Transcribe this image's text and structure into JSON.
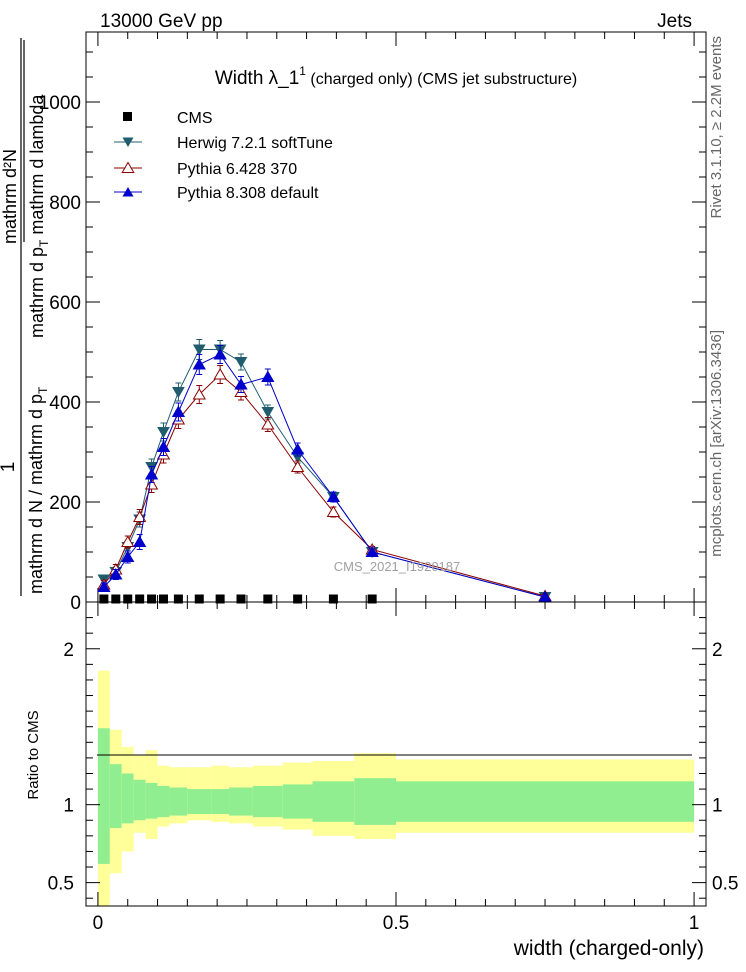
{
  "header": {
    "left": "13000 GeV pp",
    "right": "Jets"
  },
  "side_labels": {
    "rivet": "Rivet 3.1.10, ≥ 2.2M events",
    "mcplots": "mcplots.cern.ch [arXiv:1306.3436]"
  },
  "watermark": "CMS_2021_I1920187",
  "chart_data": [
    {
      "type": "line",
      "title_main": "Width λ_1",
      "title_sup": "1",
      "title_rest": " (charged only) (CMS jet substructure)",
      "ylabel_numerator": "mathrm d²N",
      "ylabel_numerator_rest": "mathrm d p",
      "ylabel_numerator_sub": "T",
      "ylabel_numerator_tail": " mathrm d lambda",
      "ylabel_one": "1",
      "ylabel_denominator": "mathrm d N / mathrm d p",
      "ylabel_denominator_sub": "T",
      "xlim": [
        -0.02,
        1.02
      ],
      "ylim": [
        0,
        1140
      ],
      "y_ticks": [
        0,
        200,
        400,
        600,
        800,
        1000
      ],
      "y_tick_labels": [
        "0",
        "200",
        "400",
        "600",
        "800",
        "1000"
      ],
      "legend_position": "top-left",
      "series": [
        {
          "name": "CMS",
          "color": "#000000",
          "marker": "square",
          "x": [
            0.01,
            0.03,
            0.05,
            0.07,
            0.09,
            0.11,
            0.135,
            0.17,
            0.205,
            0.24,
            0.285,
            0.335,
            0.395,
            0.46
          ],
          "y": [
            3,
            3,
            3,
            3,
            3,
            3,
            3,
            3,
            3,
            3,
            3,
            3,
            3,
            3
          ]
        },
        {
          "name": "Herwig 7.2.1 softTune",
          "color": "#1f5c6e",
          "marker": "triangle-down",
          "x": [
            0.01,
            0.03,
            0.05,
            0.07,
            0.09,
            0.11,
            0.135,
            0.17,
            0.205,
            0.24,
            0.285,
            0.335,
            0.395,
            0.46,
            0.75
          ],
          "y": [
            45,
            60,
            110,
            165,
            270,
            340,
            420,
            505,
            505,
            480,
            380,
            290,
            210,
            100,
            10
          ],
          "err": [
            8,
            10,
            12,
            15,
            16,
            18,
            18,
            20,
            18,
            16,
            14,
            12,
            10,
            6,
            3
          ]
        },
        {
          "name": "Pythia 6.428 370",
          "color": "#8b0000",
          "marker": "triangle-up-open",
          "x": [
            0.01,
            0.03,
            0.05,
            0.07,
            0.09,
            0.11,
            0.135,
            0.17,
            0.205,
            0.24,
            0.285,
            0.335,
            0.395,
            0.46,
            0.75
          ],
          "y": [
            35,
            65,
            120,
            170,
            235,
            295,
            365,
            415,
            455,
            420,
            355,
            270,
            180,
            105,
            12
          ],
          "err": [
            8,
            10,
            12,
            15,
            16,
            17,
            18,
            18,
            18,
            16,
            14,
            12,
            10,
            6,
            3
          ]
        },
        {
          "name": "Pythia 8.308 default",
          "color": "#0000cc",
          "marker": "triangle-up",
          "x": [
            0.01,
            0.03,
            0.05,
            0.07,
            0.09,
            0.11,
            0.135,
            0.17,
            0.205,
            0.24,
            0.285,
            0.335,
            0.395,
            0.46,
            0.75
          ],
          "y": [
            30,
            55,
            90,
            120,
            255,
            310,
            380,
            475,
            495,
            435,
            450,
            305,
            210,
            100,
            10
          ],
          "err": [
            8,
            10,
            12,
            15,
            16,
            17,
            18,
            20,
            18,
            16,
            16,
            13,
            10,
            6,
            3
          ]
        }
      ]
    },
    {
      "type": "area",
      "ylabel": "Ratio to CMS",
      "xlabel": "width (charged-only)",
      "xlim": [
        -0.02,
        1.02
      ],
      "ylim": [
        0.35,
        2.3
      ],
      "x_ticks": [
        0,
        0.5,
        1
      ],
      "x_tick_labels": [
        "0",
        "0.5",
        "1"
      ],
      "y_ticks": [
        0.5,
        1,
        2
      ],
      "y_tick_labels": [
        "0.5",
        "1",
        "2"
      ],
      "bins": [
        0,
        0.02,
        0.04,
        0.06,
        0.08,
        0.1,
        0.12,
        0.15,
        0.19,
        0.22,
        0.26,
        0.31,
        0.36,
        0.43,
        0.5,
        1.0
      ],
      "inner_band": {
        "color": "#90ee90",
        "lo": [
          0.62,
          0.85,
          0.88,
          0.9,
          0.91,
          0.92,
          0.93,
          0.94,
          0.94,
          0.93,
          0.92,
          0.91,
          0.89,
          0.87,
          0.89
        ],
        "hi": [
          1.49,
          1.26,
          1.2,
          1.16,
          1.14,
          1.12,
          1.11,
          1.1,
          1.1,
          1.11,
          1.12,
          1.13,
          1.15,
          1.17,
          1.15
        ]
      },
      "outer_band": {
        "color": "#ffff99",
        "lo": [
          0.35,
          0.56,
          0.7,
          0.82,
          0.78,
          0.86,
          0.88,
          0.9,
          0.89,
          0.88,
          0.86,
          0.84,
          0.8,
          0.78,
          0.82
        ],
        "hi": [
          1.86,
          1.48,
          1.37,
          1.32,
          1.35,
          1.25,
          1.24,
          1.24,
          1.25,
          1.24,
          1.25,
          1.27,
          1.28,
          1.33,
          1.29
        ]
      }
    }
  ]
}
